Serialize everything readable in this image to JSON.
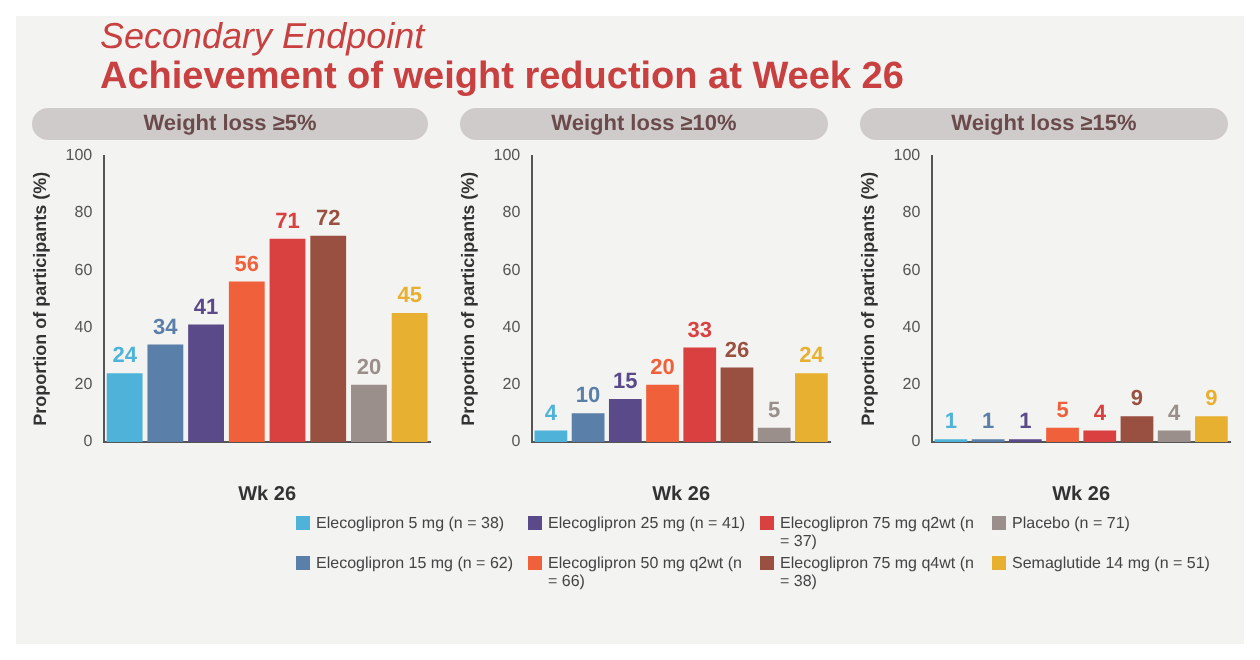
{
  "chart_data": [
    {
      "type": "bar",
      "title": "Weight loss ≥5%",
      "annotations": [
        "Secondary Endpoint",
        "Achievement of weight reduction at Week 26"
      ],
      "ylabel": "Proportion of participants (%)",
      "xlabel": "Wk 26",
      "categories": [
        null,
        null,
        null,
        null,
        null,
        null,
        null,
        null
      ],
      "ylim": [
        0,
        100
      ],
      "yticks": [
        0,
        20,
        40,
        60,
        80,
        100
      ],
      "grid": false,
      "legend": "bottom",
      "data_labels": true,
      "series": [
        {
          "name": "Elecoglipron 5 mg (n = 38)",
          "color": "#4fb3d9",
          "values": [
            24,
            null,
            null,
            null,
            null,
            null,
            null,
            null
          ]
        },
        {
          "name": "Elecoglipron 15 mg (n = 62)",
          "color": "#5a7fa8",
          "values": [
            null,
            34,
            null,
            null,
            null,
            null,
            null,
            null
          ]
        },
        {
          "name": "Elecoglipron 25 mg (n = 41)",
          "color": "#5b4a8a",
          "values": [
            null,
            null,
            41,
            null,
            null,
            null,
            null,
            null
          ]
        },
        {
          "name": "Elecoglipron 50 mg q2wt (n = 66)",
          "color": "#f0603a",
          "values": [
            null,
            null,
            null,
            56,
            null,
            null,
            null,
            null
          ]
        },
        {
          "name": "Elecoglipron 75 mg q2wt (n = 37)",
          "color": "#d94040",
          "values": [
            null,
            null,
            null,
            null,
            71,
            null,
            null,
            null
          ]
        },
        {
          "name": "Elecoglipron 75 mg q4wt (n = 38)",
          "color": "#9a5040",
          "values": [
            null,
            null,
            null,
            null,
            null,
            72,
            null,
            null
          ]
        },
        {
          "name": "Placebo (n = 71)",
          "color": "#9a8f8a",
          "values": [
            null,
            null,
            null,
            null,
            null,
            null,
            20,
            null
          ]
        },
        {
          "name": "Semaglutide 14 mg (n = 51)",
          "color": "#e8b030",
          "values": [
            null,
            null,
            null,
            null,
            null,
            null,
            null,
            45
          ]
        }
      ]
    },
    {
      "type": "bar",
      "title": "Weight loss ≥10%",
      "ylabel": "Proportion of participants (%)",
      "xlabel": "Wk 26",
      "categories": [
        null,
        null,
        null,
        null,
        null,
        null,
        null,
        null
      ],
      "ylim": [
        0,
        100
      ],
      "yticks": [
        0,
        20,
        40,
        60,
        80,
        100
      ],
      "grid": false,
      "data_labels": true,
      "series": [
        {
          "color": "#4fb3d9",
          "values": [
            4,
            null,
            null,
            null,
            null,
            null,
            null,
            null
          ]
        },
        {
          "color": "#5a7fa8",
          "values": [
            null,
            10,
            null,
            null,
            null,
            null,
            null,
            null
          ]
        },
        {
          "color": "#5b4a8a",
          "values": [
            null,
            null,
            15,
            null,
            null,
            null,
            null,
            null
          ]
        },
        {
          "color": "#f0603a",
          "values": [
            null,
            null,
            null,
            20,
            null,
            null,
            null,
            null
          ]
        },
        {
          "color": "#d94040",
          "values": [
            null,
            null,
            null,
            null,
            33,
            null,
            null,
            null
          ]
        },
        {
          "color": "#9a5040",
          "values": [
            null,
            null,
            null,
            null,
            null,
            26,
            null,
            null
          ]
        },
        {
          "color": "#9a8f8a",
          "values": [
            null,
            null,
            null,
            null,
            null,
            null,
            5,
            null
          ]
        },
        {
          "color": "#e8b030",
          "values": [
            null,
            null,
            null,
            null,
            null,
            null,
            null,
            24
          ]
        }
      ]
    },
    {
      "type": "bar",
      "title": "Weight loss ≥15%",
      "ylabel": "Proportion of participants (%)",
      "xlabel": "Wk 26",
      "categories": [
        null,
        null,
        null,
        null,
        null,
        null,
        null,
        null
      ],
      "ylim": [
        0,
        100
      ],
      "yticks": [
        0,
        20,
        40,
        60,
        80,
        100
      ],
      "grid": false,
      "data_labels": true,
      "series": [
        {
          "color": "#4fb3d9",
          "values": [
            1,
            null,
            null,
            null,
            null,
            null,
            null,
            null
          ]
        },
        {
          "color": "#5a7fa8",
          "values": [
            null,
            1,
            null,
            null,
            null,
            null,
            null,
            null
          ]
        },
        {
          "color": "#5b4a8a",
          "values": [
            null,
            null,
            1,
            null,
            null,
            null,
            null,
            null
          ]
        },
        {
          "color": "#f0603a",
          "values": [
            null,
            null,
            null,
            5,
            null,
            null,
            null,
            null
          ]
        },
        {
          "color": "#d94040",
          "values": [
            null,
            null,
            null,
            null,
            4,
            null,
            null,
            null
          ]
        },
        {
          "color": "#9a5040",
          "values": [
            null,
            null,
            null,
            null,
            null,
            9,
            null,
            null
          ]
        },
        {
          "color": "#9a8f8a",
          "values": [
            null,
            null,
            null,
            null,
            null,
            null,
            4,
            null
          ]
        },
        {
          "color": "#e8b030",
          "values": [
            null,
            null,
            null,
            null,
            null,
            null,
            null,
            9
          ]
        }
      ]
    }
  ]
}
